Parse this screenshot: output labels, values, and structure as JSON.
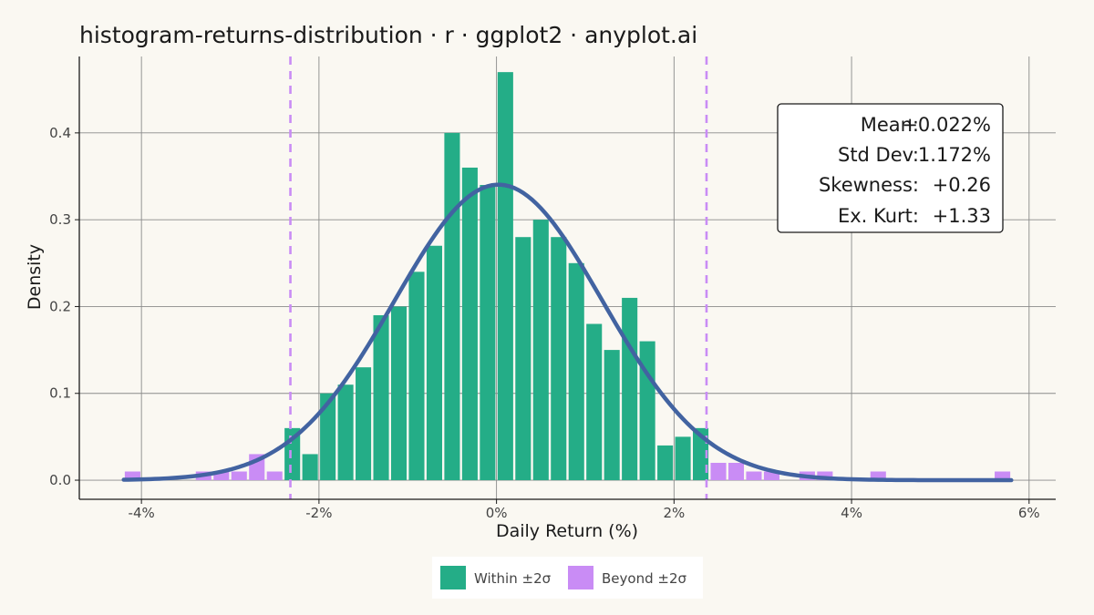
{
  "chart_data": {
    "type": "bar",
    "title": "histogram-returns-distribution · r · ggplot2 · anyplot.ai",
    "xlabel": "Daily Return (%)",
    "ylabel": "Density",
    "xlim": [
      -4.7,
      6.3
    ],
    "ylim": [
      -0.022,
      0.488
    ],
    "x_ticks": [
      -4,
      -2,
      0,
      2,
      4,
      6
    ],
    "x_tick_labels": [
      "-4%",
      "-2%",
      "0%",
      "2%",
      "4%",
      "6%"
    ],
    "y_ticks": [
      0.0,
      0.1,
      0.2,
      0.3,
      0.4
    ],
    "y_tick_labels": [
      "0.0",
      "0.1",
      "0.2",
      "0.3",
      "0.4"
    ],
    "bin_width": 0.2,
    "bins": [
      {
        "x": -4.1,
        "density": 0.01,
        "group": "Beyond ±2σ"
      },
      {
        "x": -3.3,
        "density": 0.01,
        "group": "Beyond ±2σ"
      },
      {
        "x": -3.1,
        "density": 0.01,
        "group": "Beyond ±2σ"
      },
      {
        "x": -2.9,
        "density": 0.01,
        "group": "Beyond ±2σ"
      },
      {
        "x": -2.7,
        "density": 0.03,
        "group": "Beyond ±2σ"
      },
      {
        "x": -2.5,
        "density": 0.01,
        "group": "Beyond ±2σ"
      },
      {
        "x": -2.3,
        "density": 0.06,
        "group": "Within ±2σ"
      },
      {
        "x": -2.1,
        "density": 0.03,
        "group": "Within ±2σ"
      },
      {
        "x": -1.9,
        "density": 0.1,
        "group": "Within ±2σ"
      },
      {
        "x": -1.7,
        "density": 0.11,
        "group": "Within ±2σ"
      },
      {
        "x": -1.5,
        "density": 0.13,
        "group": "Within ±2σ"
      },
      {
        "x": -1.3,
        "density": 0.19,
        "group": "Within ±2σ"
      },
      {
        "x": -1.1,
        "density": 0.2,
        "group": "Within ±2σ"
      },
      {
        "x": -0.9,
        "density": 0.24,
        "group": "Within ±2σ"
      },
      {
        "x": -0.7,
        "density": 0.27,
        "group": "Within ±2σ"
      },
      {
        "x": -0.5,
        "density": 0.4,
        "group": "Within ±2σ"
      },
      {
        "x": -0.3,
        "density": 0.36,
        "group": "Within ±2σ"
      },
      {
        "x": -0.1,
        "density": 0.34,
        "group": "Within ±2σ"
      },
      {
        "x": 0.1,
        "density": 0.47,
        "group": "Within ±2σ"
      },
      {
        "x": 0.3,
        "density": 0.28,
        "group": "Within ±2σ"
      },
      {
        "x": 0.5,
        "density": 0.3,
        "group": "Within ±2σ"
      },
      {
        "x": 0.7,
        "density": 0.28,
        "group": "Within ±2σ"
      },
      {
        "x": 0.9,
        "density": 0.25,
        "group": "Within ±2σ"
      },
      {
        "x": 1.1,
        "density": 0.18,
        "group": "Within ±2σ"
      },
      {
        "x": 1.3,
        "density": 0.15,
        "group": "Within ±2σ"
      },
      {
        "x": 1.5,
        "density": 0.21,
        "group": "Within ±2σ"
      },
      {
        "x": 1.7,
        "density": 0.16,
        "group": "Within ±2σ"
      },
      {
        "x": 1.9,
        "density": 0.04,
        "group": "Within ±2σ"
      },
      {
        "x": 2.1,
        "density": 0.05,
        "group": "Within ±2σ"
      },
      {
        "x": 2.3,
        "density": 0.06,
        "group": "Within ±2σ"
      },
      {
        "x": 2.5,
        "density": 0.02,
        "group": "Beyond ±2σ"
      },
      {
        "x": 2.7,
        "density": 0.02,
        "group": "Beyond ±2σ"
      },
      {
        "x": 2.9,
        "density": 0.01,
        "group": "Beyond ±2σ"
      },
      {
        "x": 3.1,
        "density": 0.01,
        "group": "Beyond ±2σ"
      },
      {
        "x": 3.5,
        "density": 0.01,
        "group": "Beyond ±2σ"
      },
      {
        "x": 3.7,
        "density": 0.01,
        "group": "Beyond ±2σ"
      },
      {
        "x": 4.3,
        "density": 0.01,
        "group": "Beyond ±2σ"
      },
      {
        "x": 5.7,
        "density": 0.01,
        "group": "Beyond ±2σ"
      }
    ],
    "normal_curve": {
      "mean": 0.022,
      "sd": 1.172,
      "x_range": [
        -4.2,
        5.8
      ]
    },
    "sigma_lines": [
      -2.322,
      2.366
    ],
    "stats_box": {
      "position": "top-right",
      "rows": [
        {
          "label": "Mean:",
          "value": "+0.022%"
        },
        {
          "label": "Std Dev:",
          "value": "1.172%"
        },
        {
          "label": "Skewness:",
          "value": "+0.26"
        },
        {
          "label": "Ex. Kurt:",
          "value": "+1.33"
        }
      ]
    },
    "legend": {
      "placement": "bottom",
      "entries": [
        {
          "label": "Within ±2σ",
          "color": "#24AD87"
        },
        {
          "label": "Beyond ±2σ",
          "color": "#C98CF5"
        }
      ]
    },
    "grid": true
  },
  "colors": {
    "within": "#24AD87",
    "beyond": "#C98CF5",
    "curve": "#4263A1",
    "sigma_line": "#C98CF5",
    "background": "#FAF8F2"
  }
}
